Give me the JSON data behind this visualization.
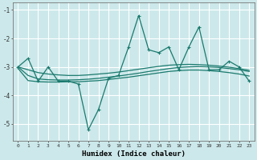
{
  "xlabel": "Humidex (Indice chaleur)",
  "bg_color": "#cce8ea",
  "grid_color": "#ffffff",
  "line_color": "#1a7a6e",
  "xlim": [
    -0.5,
    23.5
  ],
  "ylim": [
    -5.6,
    -0.75
  ],
  "yticks": [
    -5,
    -4,
    -3,
    -2,
    -1
  ],
  "xticks": [
    0,
    1,
    2,
    3,
    4,
    5,
    6,
    7,
    8,
    9,
    10,
    11,
    12,
    13,
    14,
    15,
    16,
    17,
    18,
    19,
    20,
    21,
    22,
    23
  ],
  "main_series": [
    -3.0,
    -2.7,
    -3.5,
    -3.0,
    -3.5,
    -3.5,
    -3.6,
    -5.2,
    -4.5,
    -3.4,
    -3.3,
    -2.3,
    -1.2,
    -2.4,
    -2.5,
    -2.3,
    -3.1,
    -2.3,
    -1.6,
    -3.1,
    -3.1,
    -2.8,
    -3.0,
    -3.5
  ],
  "smooth_series1": [
    -3.0,
    -3.1,
    -3.2,
    -3.25,
    -3.28,
    -3.3,
    -3.3,
    -3.28,
    -3.25,
    -3.22,
    -3.18,
    -3.13,
    -3.08,
    -3.03,
    -2.98,
    -2.94,
    -2.92,
    -2.91,
    -2.92,
    -2.94,
    -2.97,
    -3.01,
    -3.06,
    -3.12
  ],
  "smooth_series2": [
    -3.0,
    -3.3,
    -3.42,
    -3.45,
    -3.46,
    -3.46,
    -3.45,
    -3.43,
    -3.4,
    -3.36,
    -3.32,
    -3.27,
    -3.22,
    -3.16,
    -3.11,
    -3.06,
    -3.02,
    -3.0,
    -2.99,
    -3.0,
    -3.02,
    -3.06,
    -3.1,
    -3.16
  ],
  "smooth_series3": [
    -3.05,
    -3.48,
    -3.52,
    -3.53,
    -3.53,
    -3.52,
    -3.52,
    -3.5,
    -3.48,
    -3.44,
    -3.4,
    -3.36,
    -3.31,
    -3.26,
    -3.21,
    -3.16,
    -3.13,
    -3.11,
    -3.11,
    -3.13,
    -3.16,
    -3.2,
    -3.25,
    -3.32
  ]
}
